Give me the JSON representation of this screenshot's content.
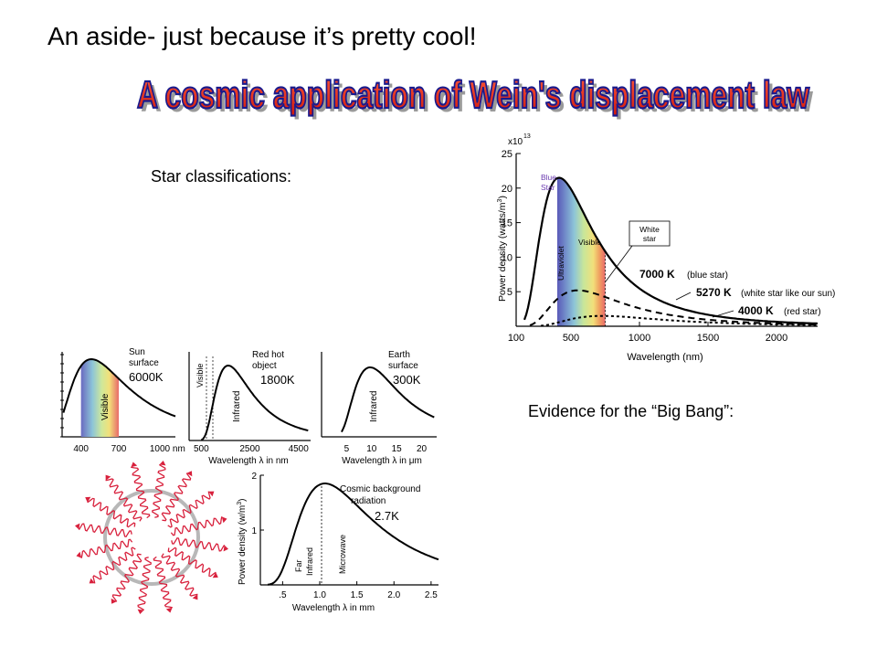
{
  "slide": {
    "aside": "An aside- just because it’s pretty cool!",
    "title": "A cosmic application of Wein's displacement law",
    "star_classifications": "Star classifications:",
    "big_bang": "Evidence for the “Big Bang”:"
  },
  "colors": {
    "title_fill": "#e8321e",
    "title_outline": "#1a1a8c",
    "ray": "#d8203c"
  },
  "chart_data": [
    {
      "type": "line",
      "title": "",
      "multiplier": "x10",
      "multiplier_exp": "13",
      "ylabel": "Power density (watts/m",
      "ylabel_exp": "3",
      "ylabel_end": ")",
      "xlabel": "Wavelength (nm)",
      "x_ticks": [
        "100",
        "500",
        "1000",
        "1500",
        "2000"
      ],
      "y_ticks": [
        "5",
        "10",
        "15",
        "20",
        "25"
      ],
      "xlim": [
        100,
        2300
      ],
      "ylim": [
        0,
        25
      ],
      "band_labels": {
        "uv": "Ultraviolet",
        "visible": "Visible"
      },
      "callouts": {
        "blue_star_1": "Blue",
        "blue_star_2": "Star",
        "white_star_1": "White",
        "white_star_2": "star"
      },
      "series": [
        {
          "temp": "7000 K",
          "note": "(blue star)",
          "peak_x": 414,
          "peak_y": 21.5
        },
        {
          "temp": "5270 K",
          "note": "(white star like our sun)",
          "peak_x": 550,
          "peak_y": 5.2
        },
        {
          "temp": "4000 K",
          "note": "(red star)",
          "peak_x": 725,
          "peak_y": 1.5
        }
      ]
    },
    {
      "type": "line",
      "panels": [
        {
          "label_1": "Sun",
          "label_2": "surface",
          "temp": "6000K",
          "band": "Visible",
          "x_ticks": [
            "400",
            "700",
            "1000 nm"
          ],
          "peak_x": 483
        },
        {
          "label_1": "Red hot",
          "label_2": "object",
          "temp": "1800K",
          "band": "Infrared",
          "band2": "Visible",
          "x_ticks": [
            "500",
            "2500",
            "4500"
          ],
          "xlabel_pre": "Wavelength",
          "xlabel_post": "in nm",
          "peak_x": 1610
        },
        {
          "label_1": "Earth",
          "label_2": "surface",
          "temp": "300K",
          "band": "Infrared",
          "x_ticks": [
            "5",
            "10",
            "15",
            "20"
          ],
          "xlabel_pre": "Wavelength",
          "xlabel_post": "in μm",
          "peak_x": 9.7
        }
      ]
    },
    {
      "type": "line",
      "title": "Cosmic background",
      "title2": "radiation",
      "temp": "2.7K",
      "ylabel": "Power density (w/m",
      "ylabel_exp": "3",
      "ylabel_end": ")",
      "xlabel_pre": "Wavelength",
      "xlabel_post": "in mm",
      "x_ticks": [
        ".5",
        "1.0",
        "1.5",
        "2.0",
        "2.5"
      ],
      "y_ticks": [
        "1",
        "2"
      ],
      "band_far": "Far",
      "band_ir": "Infrared",
      "band_mw": "Microwave",
      "peak_x": 1.07,
      "peak_y": 1.85
    }
  ]
}
